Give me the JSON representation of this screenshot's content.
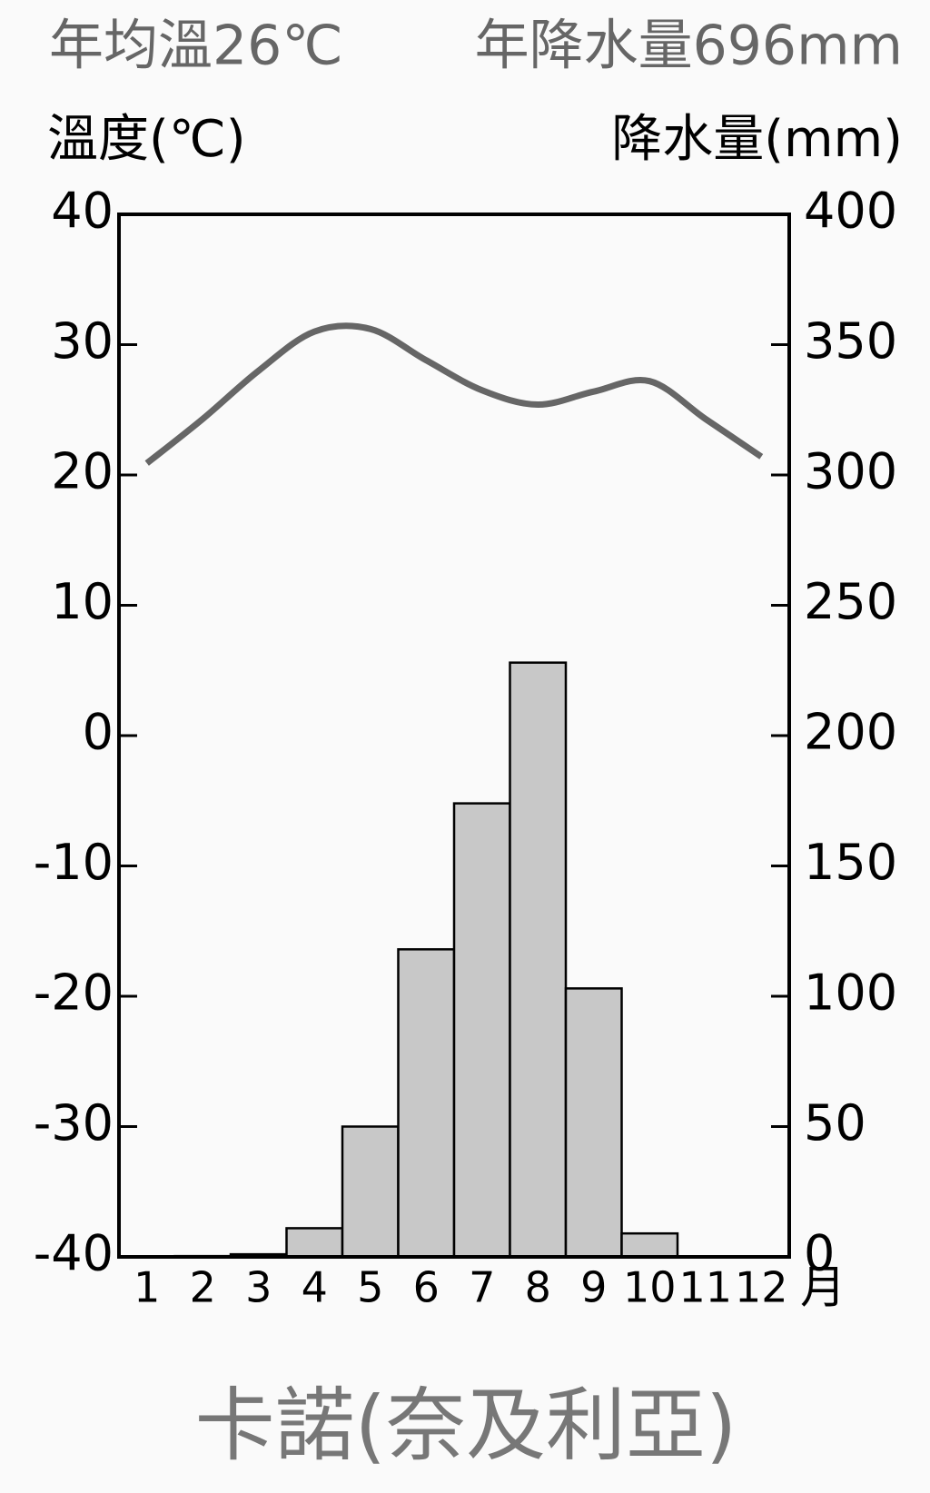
{
  "chart_data": {
    "type": "climate",
    "title": "卡諾(奈及利亞)",
    "subtitle_left": "年均溫26℃",
    "subtitle_right": "年降水量696mm",
    "y_label": "溫度(℃)",
    "y2_label": "降水量(mm)",
    "x_label": "月",
    "categories": [
      "1",
      "2",
      "3",
      "4",
      "5",
      "6",
      "7",
      "8",
      "9",
      "10",
      "11",
      "12"
    ],
    "series": [
      {
        "name": "溫度",
        "type": "line",
        "color": "#666666",
        "values": [
          20.9,
          24.3,
          28,
          31,
          31.2,
          28.8,
          26.5,
          25.4,
          26.4,
          27.2,
          24.3,
          21.4
        ]
      },
      {
        "name": "降水量",
        "type": "bar",
        "axis": "y2",
        "color": "#c8c8c8",
        "values": [
          0,
          0.3,
          1,
          11,
          50,
          118,
          174,
          228,
          103,
          9,
          0,
          0
        ]
      }
    ],
    "ylim": [
      -40,
      40
    ],
    "yticks": [
      -40,
      -30,
      -20,
      -10,
      0,
      10,
      20,
      30,
      40
    ],
    "y2lim": [
      0,
      400
    ],
    "y2ticks": [
      0,
      50,
      100,
      150,
      200,
      250,
      300,
      350,
      400
    ]
  }
}
